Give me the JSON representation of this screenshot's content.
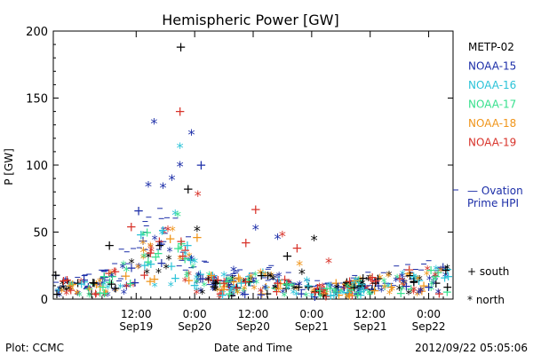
{
  "chart_data": {
    "type": "scatter",
    "title": "Hemispheric Power [GW]",
    "xlabel": "Date and Time",
    "ylabel": "P [GW]",
    "xlim": [
      "2012-09-18T19:00",
      "2012-09-22T05:00"
    ],
    "ylim": [
      0,
      200
    ],
    "y_ticks": [
      0,
      50,
      100,
      150,
      200
    ],
    "x_ticks": [
      {
        "at": "2012-09-19T12:00",
        "time": "12:00",
        "date": "Sep19"
      },
      {
        "at": "2012-09-20T00:00",
        "time": "0:00",
        "date": "Sep20"
      },
      {
        "at": "2012-09-20T12:00",
        "time": "12:00",
        "date": "Sep20"
      },
      {
        "at": "2012-09-21T00:00",
        "time": "0:00",
        "date": "Sep21"
      },
      {
        "at": "2012-09-21T12:00",
        "time": "12:00",
        "date": "Sep21"
      },
      {
        "at": "2012-09-22T00:00",
        "time": "0:00",
        "date": "Sep22"
      }
    ],
    "series": [
      {
        "name": "METP-02",
        "color": "#000000",
        "points": [
          {
            "x": "2012-09-18T19:30",
            "y": 18,
            "m": "+"
          },
          {
            "x": "2012-09-19T06:30",
            "y": 40,
            "m": "+"
          },
          {
            "x": "2012-09-19T14:30",
            "y": 32,
            "m": "*"
          },
          {
            "x": "2012-09-19T21:10",
            "y": 188,
            "m": "+"
          },
          {
            "x": "2012-09-19T22:40",
            "y": 82,
            "m": "+"
          },
          {
            "x": "2012-09-20T00:30",
            "y": 52,
            "m": "*"
          },
          {
            "x": "2012-09-20T04:00",
            "y": 14,
            "m": "+"
          },
          {
            "x": "2012-09-20T07:00",
            "y": 10,
            "m": "*"
          },
          {
            "x": "2012-09-20T19:00",
            "y": 32,
            "m": "+"
          },
          {
            "x": "2012-09-20T22:00",
            "y": 20,
            "m": "*"
          },
          {
            "x": "2012-09-21T00:30",
            "y": 45,
            "m": "*"
          },
          {
            "x": "2012-09-21T08:00",
            "y": 10,
            "m": "+"
          },
          {
            "x": "2012-09-21T18:00",
            "y": 8,
            "m": "*"
          },
          {
            "x": "2012-09-22T01:30",
            "y": 12,
            "m": "+"
          }
        ]
      },
      {
        "name": "NOAA-15",
        "color": "#1c2ea8",
        "points": [
          {
            "x": "2012-09-19T15:40",
            "y": 132,
            "m": "*"
          },
          {
            "x": "2012-09-19T19:20",
            "y": 90,
            "m": "*"
          },
          {
            "x": "2012-09-19T21:00",
            "y": 100,
            "m": "*"
          },
          {
            "x": "2012-09-19T23:20",
            "y": 124,
            "m": "*"
          },
          {
            "x": "2012-09-20T01:20",
            "y": 100,
            "m": "+"
          },
          {
            "x": "2012-09-19T12:30",
            "y": 66,
            "m": "+"
          },
          {
            "x": "2012-09-19T14:30",
            "y": 85,
            "m": "*"
          },
          {
            "x": "2012-09-19T17:30",
            "y": 84,
            "m": "*"
          },
          {
            "x": "2012-09-20T12:30",
            "y": 53,
            "m": "*"
          },
          {
            "x": "2012-09-20T17:00",
            "y": 46,
            "m": "*"
          },
          {
            "x": "2012-09-20T04:00",
            "y": 16,
            "m": "*"
          },
          {
            "x": "2012-09-20T08:00",
            "y": 22,
            "m": "*"
          },
          {
            "x": "2012-09-21T04:00",
            "y": 10,
            "m": "*"
          },
          {
            "x": "2012-09-21T11:00",
            "y": 8,
            "m": "*"
          },
          {
            "x": "2012-09-21T19:00",
            "y": 12,
            "m": "*"
          },
          {
            "x": "2012-09-22T02:30",
            "y": 22,
            "m": "*"
          },
          {
            "x": "2012-09-22T03:30",
            "y": 18,
            "m": "*"
          }
        ]
      },
      {
        "name": "NOAA-16",
        "color": "#2bc3d8",
        "points": [
          {
            "x": "2012-09-19T21:00",
            "y": 114,
            "m": "*"
          },
          {
            "x": "2012-09-19T13:00",
            "y": 48,
            "m": "+"
          },
          {
            "x": "2012-09-19T20:00",
            "y": 64,
            "m": "*"
          },
          {
            "x": "2012-09-19T22:30",
            "y": 40,
            "m": "+"
          },
          {
            "x": "2012-09-20T00:00",
            "y": 28,
            "m": "*"
          },
          {
            "x": "2012-09-20T06:00",
            "y": 18,
            "m": "*"
          },
          {
            "x": "2012-09-20T14:00",
            "y": 20,
            "m": "+"
          },
          {
            "x": "2012-09-20T23:00",
            "y": 14,
            "m": "*"
          },
          {
            "x": "2012-09-21T09:00",
            "y": 9,
            "m": "*"
          },
          {
            "x": "2012-09-21T22:00",
            "y": 14,
            "m": "+"
          }
        ]
      },
      {
        "name": "NOAA-17",
        "color": "#37e08e",
        "points": [
          {
            "x": "2012-09-19T20:30",
            "y": 63,
            "m": "*"
          },
          {
            "x": "2012-09-19T22:00",
            "y": 30,
            "m": "+"
          },
          {
            "x": "2012-09-19T10:00",
            "y": 22,
            "m": "*"
          },
          {
            "x": "2012-09-20T03:00",
            "y": 18,
            "m": "*"
          },
          {
            "x": "2012-09-20T11:00",
            "y": 12,
            "m": "*"
          },
          {
            "x": "2012-09-20T20:00",
            "y": 10,
            "m": "*"
          },
          {
            "x": "2012-09-21T06:00",
            "y": 6,
            "m": "*"
          },
          {
            "x": "2012-09-21T15:00",
            "y": 10,
            "m": "+"
          },
          {
            "x": "2012-09-22T00:30",
            "y": 8,
            "m": "*"
          }
        ]
      },
      {
        "name": "NOAA-18",
        "color": "#f0951a",
        "points": [
          {
            "x": "2012-09-19T13:30",
            "y": 36,
            "m": "*"
          },
          {
            "x": "2012-09-19T19:00",
            "y": 45,
            "m": "+"
          },
          {
            "x": "2012-09-20T00:30",
            "y": 46,
            "m": "+"
          },
          {
            "x": "2012-09-20T09:00",
            "y": 16,
            "m": "+"
          },
          {
            "x": "2012-09-20T13:30",
            "y": 20,
            "m": "*"
          },
          {
            "x": "2012-09-20T21:30",
            "y": 26,
            "m": "*"
          },
          {
            "x": "2012-09-21T05:00",
            "y": 12,
            "m": "+"
          },
          {
            "x": "2012-09-21T14:00",
            "y": 16,
            "m": "*"
          },
          {
            "x": "2012-09-21T23:00",
            "y": 10,
            "m": "+"
          }
        ]
      },
      {
        "name": "NOAA-19",
        "color": "#d8332a",
        "points": [
          {
            "x": "2012-09-19T21:00",
            "y": 140,
            "m": "+"
          },
          {
            "x": "2012-09-20T00:40",
            "y": 78,
            "m": "*"
          },
          {
            "x": "2012-09-19T11:00",
            "y": 54,
            "m": "+"
          },
          {
            "x": "2012-09-19T18:30",
            "y": 52,
            "m": "*"
          },
          {
            "x": "2012-09-20T12:30",
            "y": 67,
            "m": "+"
          },
          {
            "x": "2012-09-20T10:30",
            "y": 42,
            "m": "+"
          },
          {
            "x": "2012-09-20T18:00",
            "y": 48,
            "m": "*"
          },
          {
            "x": "2012-09-20T21:00",
            "y": 38,
            "m": "+"
          },
          {
            "x": "2012-09-21T03:30",
            "y": 28,
            "m": "*"
          },
          {
            "x": "2012-09-20T06:30",
            "y": 14,
            "m": "*"
          },
          {
            "x": "2012-09-21T12:30",
            "y": 12,
            "m": "*"
          },
          {
            "x": "2012-09-21T20:00",
            "y": 22,
            "m": "+"
          }
        ]
      }
    ],
    "ovation": {
      "label_line1": "— Ovation",
      "label_line2": "Prime HPI",
      "color": "#1c2ea8",
      "y_marker": 85
    },
    "marker_key": {
      "plus": "+ south",
      "star": "* north"
    },
    "footer_left": "Plot: CCMC",
    "footer_right": "2012/09/22 05:05:06",
    "legend_position": "right",
    "grid": false
  }
}
